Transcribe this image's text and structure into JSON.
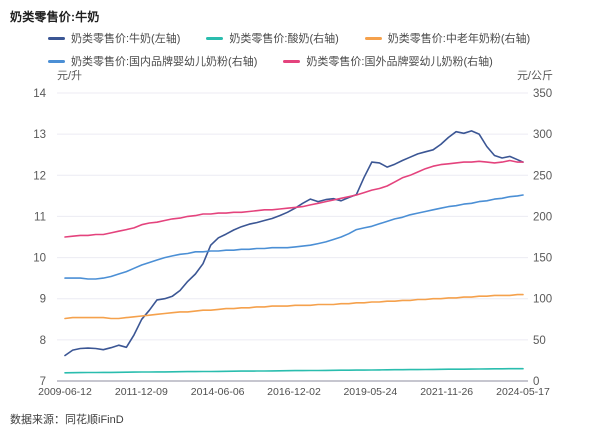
{
  "header": {
    "title": "奶类零售价:牛奶"
  },
  "footer": {
    "source": "数据来源：同花顺iFinD"
  },
  "colors": {
    "grid": "#ECEBF3",
    "axis_line": "#C6C6CF",
    "tick_text": "#595959",
    "x_tick_text": "#4f4f4f"
  },
  "chart_data": {
    "type": "line",
    "title": "奶类零售价:牛奶",
    "legend_position": "top",
    "grid": true,
    "left_axis": {
      "unit": "元/升",
      "min": 7,
      "max": 14,
      "ticks": [
        14,
        13,
        12,
        11,
        10,
        9,
        8,
        7
      ]
    },
    "right_axis": {
      "unit": "元/公斤",
      "min": 0,
      "max": 350,
      "ticks": [
        350,
        300,
        250,
        200,
        150,
        100,
        50,
        0
      ]
    },
    "x_tick_labels": [
      "2009-06-12",
      "2011-12-09",
      "2014-06-06",
      "2016-12-02",
      "2019-05-24",
      "2021-11-26",
      "2024-05-17"
    ],
    "x_years": [
      2009.45,
      2009.7,
      2009.95,
      2010.2,
      2010.45,
      2010.7,
      2010.95,
      2011.2,
      2011.45,
      2011.7,
      2011.95,
      2012.2,
      2012.45,
      2012.7,
      2012.95,
      2013.2,
      2013.45,
      2013.7,
      2013.95,
      2014.2,
      2014.45,
      2014.7,
      2014.95,
      2015.2,
      2015.45,
      2015.7,
      2015.95,
      2016.2,
      2016.45,
      2016.7,
      2016.95,
      2017.2,
      2017.45,
      2017.7,
      2017.95,
      2018.2,
      2018.45,
      2018.7,
      2018.95,
      2019.2,
      2019.45,
      2019.7,
      2019.95,
      2020.2,
      2020.45,
      2020.7,
      2020.95,
      2021.2,
      2021.45,
      2021.7,
      2021.95,
      2022.2,
      2022.45,
      2022.7,
      2022.95,
      2023.2,
      2023.45,
      2023.7,
      2023.95,
      2024.2,
      2024.38
    ],
    "series": [
      {
        "name": "奶类零售价:牛奶(左轴)",
        "axis": "left",
        "color": "#3B5694",
        "values": [
          7.62,
          7.75,
          7.79,
          7.8,
          7.79,
          7.76,
          7.81,
          7.87,
          7.82,
          8.12,
          8.5,
          8.72,
          8.97,
          9.0,
          9.06,
          9.2,
          9.42,
          9.6,
          9.85,
          10.3,
          10.48,
          10.57,
          10.67,
          10.75,
          10.81,
          10.85,
          10.9,
          10.95,
          11.02,
          11.1,
          11.2,
          11.32,
          11.42,
          11.36,
          11.41,
          11.43,
          11.38,
          11.46,
          11.53,
          11.95,
          12.32,
          12.3,
          12.2,
          12.27,
          12.36,
          12.44,
          12.52,
          12.57,
          12.62,
          12.75,
          12.92,
          13.06,
          13.02,
          13.08,
          13.0,
          12.7,
          12.48,
          12.42,
          12.46,
          12.38,
          12.32
        ]
      },
      {
        "name": "奶类零售价:酸奶(右轴)",
        "axis": "right",
        "color": "#2ABDAE",
        "values": [
          10.0,
          10.1,
          10.2,
          10.3,
          10.3,
          10.4,
          10.5,
          10.6,
          10.7,
          10.8,
          10.9,
          10.9,
          11.0,
          11.1,
          11.2,
          11.3,
          11.4,
          11.4,
          11.5,
          11.6,
          11.7,
          11.8,
          11.9,
          12.0,
          12.0,
          12.1,
          12.2,
          12.3,
          12.4,
          12.5,
          12.6,
          12.6,
          12.7,
          12.8,
          12.9,
          13.0,
          13.1,
          13.1,
          13.2,
          13.3,
          13.4,
          13.5,
          13.6,
          13.7,
          13.7,
          13.8,
          13.9,
          14.0,
          14.1,
          14.2,
          14.3,
          14.3,
          14.4,
          14.5,
          14.6,
          14.7,
          14.8,
          14.8,
          14.9,
          15.0,
          15.0
        ]
      },
      {
        "name": "奶类零售价:中老年奶粉(右轴)",
        "axis": "right",
        "color": "#F5A14C",
        "values": [
          76,
          77,
          77,
          77,
          77,
          77,
          76,
          76,
          77,
          78,
          79,
          80,
          81,
          82,
          83,
          84,
          84,
          85,
          86,
          86,
          87,
          88,
          88,
          89,
          89,
          90,
          90,
          91,
          91,
          91,
          92,
          92,
          92,
          93,
          93,
          93,
          94,
          94,
          95,
          95,
          96,
          96,
          97,
          97,
          98,
          98,
          99,
          99,
          100,
          100,
          101,
          101,
          102,
          102,
          103,
          103,
          104,
          104,
          104,
          105,
          105
        ]
      },
      {
        "name": "奶类零售价:国内品牌婴幼儿奶粉(右轴)",
        "axis": "right",
        "color": "#4B8FD5",
        "values": [
          125,
          125,
          125,
          124,
          124,
          125,
          127,
          130,
          133,
          137,
          141,
          144,
          147,
          150,
          152,
          154,
          155,
          157,
          157,
          158,
          158,
          159,
          159,
          160,
          160,
          161,
          161,
          162,
          162,
          162,
          163,
          164,
          165,
          167,
          169,
          172,
          175,
          179,
          184,
          186,
          188,
          191,
          194,
          197,
          199,
          202,
          204,
          206,
          208,
          210,
          212,
          213,
          215,
          216,
          218,
          219,
          221,
          222,
          224,
          225,
          226
        ]
      },
      {
        "name": "奶类零售价:国外品牌婴幼儿奶粉(右轴)",
        "axis": "right",
        "color": "#E4437D",
        "values": [
          175,
          176,
          177,
          177,
          178,
          178,
          180,
          182,
          184,
          186,
          190,
          192,
          193,
          195,
          197,
          198,
          200,
          201,
          203,
          203,
          204,
          204,
          205,
          205,
          206,
          207,
          208,
          208,
          209,
          210,
          211,
          212,
          214,
          216,
          218,
          220,
          222,
          224,
          226,
          229,
          232,
          234,
          237,
          242,
          247,
          250,
          254,
          258,
          261,
          263,
          264,
          265,
          266,
          266,
          267,
          266,
          265,
          266,
          268,
          266,
          266
        ]
      }
    ]
  }
}
